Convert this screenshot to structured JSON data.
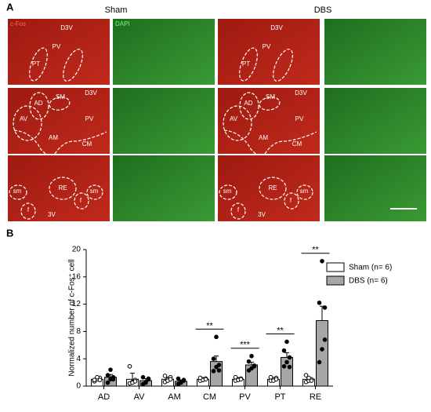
{
  "panel_a": {
    "label": "A",
    "columns": [
      "Sham",
      "DBS"
    ],
    "stain_labels": [
      "c-Fos",
      "DAPI"
    ],
    "regions": [
      [
        "D3V",
        "PV",
        "PT"
      ],
      [
        "AD",
        "SM",
        "D3V",
        "AV",
        "PV",
        "AM",
        "CM"
      ],
      [
        "sm",
        "f",
        "RE",
        "f",
        "sm",
        "3V"
      ]
    ]
  },
  "chart_data": {
    "type": "bar",
    "label": "B",
    "y_label": "Normalized number of c-Fos⁺ cell",
    "categories": [
      "AD",
      "AV",
      "AM",
      "CM",
      "PV",
      "PT",
      "RE"
    ],
    "series": [
      {
        "name": "Sham (n= 6)",
        "color": "#ffffff",
        "values": [
          1.0,
          1.0,
          1.0,
          1.0,
          1.0,
          1.0,
          1.0
        ],
        "errors": [
          0.2,
          0.9,
          0.3,
          0.1,
          0.1,
          0.1,
          0.2
        ],
        "points": [
          [
            0.7,
            1.0,
            1.2,
            0.9,
            1.3,
            0.9
          ],
          [
            0.4,
            0.6,
            0.9,
            2.9,
            0.5,
            0.7
          ],
          [
            0.6,
            1.0,
            1.3,
            1.5,
            0.8,
            1.0
          ],
          [
            0.8,
            1.0,
            1.1,
            1.2,
            0.9,
            1.0
          ],
          [
            0.8,
            1.0,
            1.1,
            1.3,
            0.9,
            1.0
          ],
          [
            0.8,
            1.0,
            1.2,
            1.3,
            0.8,
            1.0
          ],
          [
            0.6,
            0.8,
            1.0,
            1.6,
            1.2,
            0.8
          ]
        ]
      },
      {
        "name": "DBS (n= 6)",
        "color": "#a6a6a6",
        "values": [
          1.3,
          0.8,
          0.7,
          3.6,
          3.1,
          4.2,
          9.6
        ],
        "errors": [
          0.4,
          0.3,
          0.2,
          0.8,
          0.4,
          0.7,
          2.1
        ],
        "points": [
          [
            0.5,
            1.0,
            1.3,
            1.6,
            2.4,
            1.0
          ],
          [
            0.3,
            0.6,
            1.0,
            1.3,
            0.5,
            1.1
          ],
          [
            0.3,
            0.6,
            0.8,
            1.1,
            0.5,
            0.9
          ],
          [
            2.2,
            2.8,
            3.1,
            4.0,
            7.2,
            2.3
          ],
          [
            2.3,
            2.6,
            3.0,
            3.6,
            4.4,
            2.9
          ],
          [
            2.9,
            3.5,
            4.2,
            5.2,
            6.5,
            2.8
          ],
          [
            3.5,
            5.4,
            6.8,
            12.2,
            18.3,
            11.5
          ]
        ]
      }
    ],
    "significance": [
      null,
      null,
      null,
      "**",
      "***",
      "**",
      "**"
    ],
    "ylim": [
      0,
      20
    ],
    "yticks": [
      0,
      4,
      8,
      12,
      16,
      20
    ],
    "legend": "upper right"
  }
}
